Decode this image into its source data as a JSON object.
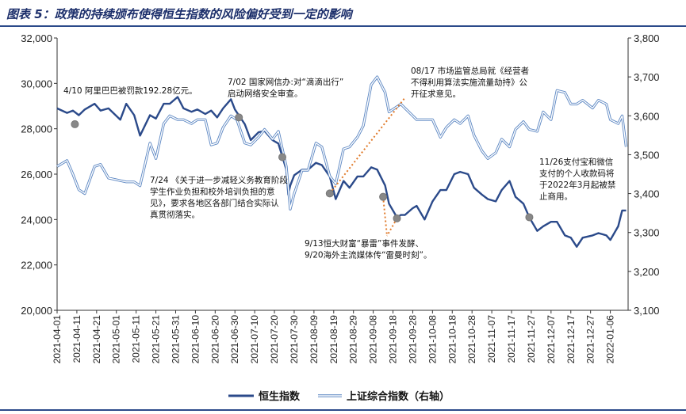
{
  "title": "图表 5：政策的持续颁布使得恒生指数的风险偏好受到一定的影响",
  "chart_data": {
    "type": "line",
    "y_left": {
      "min": 20000,
      "max": 32000,
      "ticks": [
        "20,000",
        "22,000",
        "24,000",
        "26,000",
        "28,000",
        "30,000",
        "32,000"
      ]
    },
    "y_right": {
      "min": 3100,
      "max": 3800,
      "ticks": [
        "3,100",
        "3,200",
        "3,300",
        "3,400",
        "3,500",
        "3,600",
        "3,700",
        "3,800"
      ]
    },
    "x_ticks": [
      "2021-04-01",
      "2021-04-11",
      "2021-04-21",
      "2021-05-01",
      "2021-05-11",
      "2021-05-21",
      "2021-05-31",
      "2021-06-10",
      "2021-06-20",
      "2021-06-30",
      "2021-07-10",
      "2021-07-20",
      "2021-07-30",
      "2021-08-09",
      "2021-08-19",
      "2021-08-29",
      "2021-09-08",
      "2021-09-18",
      "2021-09-28",
      "2021-10-08",
      "2021-10-18",
      "2021-10-28",
      "2021-11-07",
      "2021-11-17",
      "2021-11-27",
      "2021-12-07",
      "2021-12-17",
      "2021-12-27",
      "2022-01-06"
    ],
    "x_range": [
      "2021-04-01",
      "2022-01-15"
    ],
    "series": [
      {
        "name": "恒生指数",
        "axis": "left",
        "color": "#2b4a8a",
        "points": [
          [
            "2021-04-01",
            28900
          ],
          [
            "2021-04-06",
            28700
          ],
          [
            "2021-04-09",
            28800
          ],
          [
            "2021-04-12",
            28600
          ],
          [
            "2021-04-15",
            28850
          ],
          [
            "2021-04-20",
            29100
          ],
          [
            "2021-04-23",
            28800
          ],
          [
            "2021-04-27",
            28900
          ],
          [
            "2021-05-03",
            28400
          ],
          [
            "2021-05-06",
            29100
          ],
          [
            "2021-05-10",
            28600
          ],
          [
            "2021-05-13",
            27700
          ],
          [
            "2021-05-18",
            28600
          ],
          [
            "2021-05-21",
            28450
          ],
          [
            "2021-05-25",
            29100
          ],
          [
            "2021-05-28",
            29100
          ],
          [
            "2021-06-01",
            29400
          ],
          [
            "2021-06-04",
            28900
          ],
          [
            "2021-06-08",
            28750
          ],
          [
            "2021-06-11",
            28850
          ],
          [
            "2021-06-15",
            28650
          ],
          [
            "2021-06-18",
            28800
          ],
          [
            "2021-06-21",
            28500
          ],
          [
            "2021-06-24",
            28900
          ],
          [
            "2021-06-28",
            29300
          ],
          [
            "2021-06-30",
            28850
          ],
          [
            "2021-07-05",
            28200
          ],
          [
            "2021-07-08",
            27500
          ],
          [
            "2021-07-12",
            27850
          ],
          [
            "2021-07-15",
            27900
          ],
          [
            "2021-07-19",
            27500
          ],
          [
            "2021-07-22",
            27350
          ],
          [
            "2021-07-26",
            26200
          ],
          [
            "2021-07-27",
            25100
          ],
          [
            "2021-07-28",
            25500
          ],
          [
            "2021-07-30",
            25950
          ],
          [
            "2021-08-03",
            26200
          ],
          [
            "2021-08-06",
            26200
          ],
          [
            "2021-08-10",
            26500
          ],
          [
            "2021-08-13",
            26400
          ],
          [
            "2021-08-17",
            25900
          ],
          [
            "2021-08-20",
            24900
          ],
          [
            "2021-08-24",
            25700
          ],
          [
            "2021-08-27",
            25400
          ],
          [
            "2021-08-31",
            25900
          ],
          [
            "2021-09-03",
            25900
          ],
          [
            "2021-09-07",
            26300
          ],
          [
            "2021-09-10",
            26200
          ],
          [
            "2021-09-14",
            25500
          ],
          [
            "2021-09-16",
            24700
          ],
          [
            "2021-09-20",
            24100
          ],
          [
            "2021-09-22",
            24200
          ],
          [
            "2021-09-24",
            24200
          ],
          [
            "2021-09-28",
            24500
          ],
          [
            "2021-09-30",
            24600
          ],
          [
            "2021-10-04",
            24000
          ],
          [
            "2021-10-06",
            24400
          ],
          [
            "2021-10-08",
            24800
          ],
          [
            "2021-10-12",
            25300
          ],
          [
            "2021-10-15",
            25300
          ],
          [
            "2021-10-19",
            26000
          ],
          [
            "2021-10-22",
            26100
          ],
          [
            "2021-10-26",
            26000
          ],
          [
            "2021-10-29",
            25400
          ],
          [
            "2021-11-02",
            25100
          ],
          [
            "2021-11-05",
            24900
          ],
          [
            "2021-11-09",
            24800
          ],
          [
            "2021-11-12",
            25300
          ],
          [
            "2021-11-16",
            25700
          ],
          [
            "2021-11-19",
            25000
          ],
          [
            "2021-11-23",
            24700
          ],
          [
            "2021-11-26",
            24100
          ],
          [
            "2021-11-30",
            23500
          ],
          [
            "2021-12-03",
            23700
          ],
          [
            "2021-12-07",
            23900
          ],
          [
            "2021-12-10",
            23900
          ],
          [
            "2021-12-14",
            23300
          ],
          [
            "2021-12-17",
            23200
          ],
          [
            "2021-12-20",
            22800
          ],
          [
            "2021-12-23",
            23200
          ],
          [
            "2021-12-28",
            23300
          ],
          [
            "2021-12-31",
            23400
          ],
          [
            "2022-01-04",
            23300
          ],
          [
            "2022-01-06",
            23100
          ],
          [
            "2022-01-10",
            23700
          ],
          [
            "2022-01-12",
            24400
          ],
          [
            "2022-01-14",
            24400
          ]
        ]
      },
      {
        "name": "上证综合指数（右轴）",
        "axis": "right",
        "color": "#8fb4e3",
        "points": [
          [
            "2021-04-01",
            3470
          ],
          [
            "2021-04-06",
            3485
          ],
          [
            "2021-04-09",
            3450
          ],
          [
            "2021-04-12",
            3410
          ],
          [
            "2021-04-15",
            3400
          ],
          [
            "2021-04-20",
            3470
          ],
          [
            "2021-04-23",
            3475
          ],
          [
            "2021-04-27",
            3440
          ],
          [
            "2021-05-06",
            3430
          ],
          [
            "2021-05-10",
            3430
          ],
          [
            "2021-05-13",
            3420
          ],
          [
            "2021-05-18",
            3530
          ],
          [
            "2021-05-21",
            3490
          ],
          [
            "2021-05-25",
            3580
          ],
          [
            "2021-05-28",
            3600
          ],
          [
            "2021-06-01",
            3590
          ],
          [
            "2021-06-04",
            3590
          ],
          [
            "2021-06-08",
            3580
          ],
          [
            "2021-06-11",
            3590
          ],
          [
            "2021-06-15",
            3590
          ],
          [
            "2021-06-18",
            3525
          ],
          [
            "2021-06-21",
            3530
          ],
          [
            "2021-06-24",
            3570
          ],
          [
            "2021-06-28",
            3600
          ],
          [
            "2021-07-01",
            3590
          ],
          [
            "2021-07-05",
            3530
          ],
          [
            "2021-07-08",
            3525
          ],
          [
            "2021-07-12",
            3545
          ],
          [
            "2021-07-15",
            3565
          ],
          [
            "2021-07-19",
            3540
          ],
          [
            "2021-07-22",
            3560
          ],
          [
            "2021-07-26",
            3470
          ],
          [
            "2021-07-28",
            3360
          ],
          [
            "2021-07-30",
            3400
          ],
          [
            "2021-08-03",
            3460
          ],
          [
            "2021-08-06",
            3460
          ],
          [
            "2021-08-10",
            3530
          ],
          [
            "2021-08-13",
            3520
          ],
          [
            "2021-08-17",
            3445
          ],
          [
            "2021-08-20",
            3425
          ],
          [
            "2021-08-24",
            3515
          ],
          [
            "2021-08-27",
            3520
          ],
          [
            "2021-08-31",
            3545
          ],
          [
            "2021-09-03",
            3575
          ],
          [
            "2021-09-07",
            3680
          ],
          [
            "2021-09-10",
            3700
          ],
          [
            "2021-09-14",
            3660
          ],
          [
            "2021-09-16",
            3610
          ],
          [
            "2021-09-22",
            3630
          ],
          [
            "2021-09-24",
            3620
          ],
          [
            "2021-09-28",
            3600
          ],
          [
            "2021-09-30",
            3590
          ],
          [
            "2021-10-08",
            3590
          ],
          [
            "2021-10-12",
            3545
          ],
          [
            "2021-10-15",
            3570
          ],
          [
            "2021-10-19",
            3590
          ],
          [
            "2021-10-22",
            3580
          ],
          [
            "2021-10-26",
            3600
          ],
          [
            "2021-10-29",
            3550
          ],
          [
            "2021-11-02",
            3510
          ],
          [
            "2021-11-05",
            3490
          ],
          [
            "2021-11-09",
            3505
          ],
          [
            "2021-11-12",
            3540
          ],
          [
            "2021-11-16",
            3520
          ],
          [
            "2021-11-19",
            3565
          ],
          [
            "2021-11-23",
            3585
          ],
          [
            "2021-11-26",
            3565
          ],
          [
            "2021-11-30",
            3560
          ],
          [
            "2021-12-03",
            3610
          ],
          [
            "2021-12-07",
            3590
          ],
          [
            "2021-12-10",
            3665
          ],
          [
            "2021-12-14",
            3660
          ],
          [
            "2021-12-17",
            3630
          ],
          [
            "2021-12-20",
            3630
          ],
          [
            "2021-12-23",
            3640
          ],
          [
            "2021-12-28",
            3620
          ],
          [
            "2021-12-31",
            3640
          ],
          [
            "2022-01-04",
            3630
          ],
          [
            "2022-01-06",
            3590
          ],
          [
            "2022-01-10",
            3580
          ],
          [
            "2022-01-12",
            3600
          ],
          [
            "2022-01-14",
            3520
          ]
        ]
      }
    ],
    "markers": [
      {
        "date": "2021-04-10",
        "value": 28200
      },
      {
        "date": "2021-07-02",
        "value": 28500
      },
      {
        "date": "2021-07-24",
        "value": 26750
      },
      {
        "date": "2021-08-17",
        "value": 25150
      },
      {
        "date": "2021-09-13",
        "value": 25000
      },
      {
        "date": "2021-09-20",
        "value": 24050
      },
      {
        "date": "2021-11-26",
        "value": 24100
      }
    ],
    "annotations": [
      {
        "date": "2021-04-10",
        "lines": [
          "4/10 阿里巴巴被罚款192.28亿元。"
        ]
      },
      {
        "date": "2021-07-02",
        "lines": [
          "7/02 国家网信办:对“滴滴出行”",
          "启动网络安全审查。"
        ]
      },
      {
        "date": "2021-07-24",
        "lines": [
          "7/24 《关于进一步减轻义务教育阶段",
          "学生作业负担和校外培训负担的意",
          "见》，要求各地区各部门结合实际认",
          "真贯彻落实。"
        ]
      },
      {
        "date": "2021-08-17",
        "lines": [
          "08/17 市场监管总局就《经营者",
          "不得利用算法实施流量劫持》公",
          "开征求意见。"
        ]
      },
      {
        "date": "2021-09-13",
        "lines": [
          "9/13恒大财富“暴雷”事件发酵、",
          "9/20海外主流媒体传“雷曼时刻”。"
        ]
      },
      {
        "date": "2021-11-26",
        "lines": [
          "11/26支付宝和微信",
          "支付的个人收款码将",
          "于2022年3月起被禁",
          "止商用。"
        ]
      }
    ],
    "legend": [
      "恒生指数",
      "上证综合指数（右轴）"
    ]
  }
}
